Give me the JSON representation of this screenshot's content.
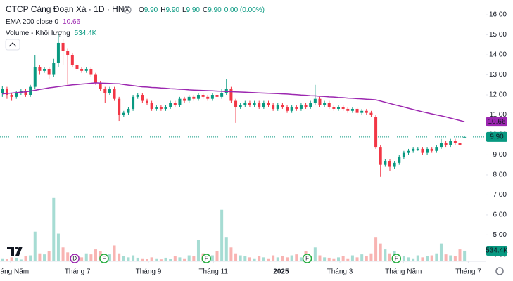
{
  "legend": {
    "title": "CTCP Cảng Đoạn Xá · 1D · HNX",
    "ohlc": [
      {
        "key": "O",
        "value": "9.90"
      },
      {
        "key": "H",
        "value": "9.90"
      },
      {
        "key": "L",
        "value": "9.90"
      },
      {
        "key": "C",
        "value": "9.90"
      }
    ],
    "change": "0.00 (0.00%)"
  },
  "chart_data": {
    "type": "candlestick",
    "up_color": "#089981",
    "down_color": "#f23645",
    "open": [
      12.1,
      12.3,
      12.0,
      11.9,
      12.1,
      12.2,
      12.0,
      12.4,
      13.4,
      13.2,
      13.3,
      13.0,
      13.6,
      14.6,
      14.2,
      14.0,
      13.5,
      13.3,
      13.2,
      13.3,
      13.0,
      12.6,
      12.3,
      12.1,
      12.3,
      11.8,
      11.0,
      11.1,
      11.3,
      11.9,
      12.0,
      11.7,
      11.6,
      11.3,
      11.4,
      11.3,
      11.4,
      11.6,
      11.5,
      11.8,
      11.7,
      11.9,
      11.8,
      12.0,
      11.9,
      11.8,
      12.0,
      11.9,
      12.1,
      12.3,
      11.7,
      11.4,
      11.5,
      11.6,
      11.5,
      11.6,
      11.4,
      11.6,
      11.5,
      11.3,
      11.5,
      11.4,
      11.2,
      11.4,
      11.3,
      11.5,
      11.4,
      11.6,
      11.8,
      11.5,
      11.6,
      11.4,
      11.3,
      11.4,
      11.3,
      11.2,
      11.3,
      11.1,
      11.2,
      11.1,
      10.9,
      9.4,
      8.5,
      8.7,
      8.4,
      8.6,
      8.9,
      9.1,
      9.2,
      9.3,
      9.3,
      9.1,
      9.3,
      9.2,
      9.4,
      9.6,
      9.5,
      9.7,
      9.6,
      9.9
    ],
    "high": [
      12.45,
      12.4,
      12.1,
      12.2,
      12.3,
      12.3,
      12.5,
      14.0,
      13.5,
      13.4,
      13.4,
      13.8,
      15.1,
      14.8,
      14.3,
      14.1,
      13.6,
      13.4,
      13.4,
      13.4,
      13.1,
      12.7,
      12.4,
      12.4,
      12.4,
      11.9,
      11.2,
      11.4,
      12.0,
      12.1,
      12.1,
      11.8,
      11.7,
      11.5,
      11.5,
      11.5,
      11.7,
      11.7,
      11.9,
      11.9,
      12.0,
      12.0,
      12.1,
      12.1,
      12.0,
      12.1,
      12.1,
      12.3,
      12.8,
      12.4,
      11.8,
      11.6,
      11.7,
      11.7,
      11.7,
      11.7,
      11.7,
      11.7,
      11.6,
      11.6,
      11.6,
      11.5,
      11.5,
      11.5,
      11.6,
      11.6,
      11.7,
      12.5,
      11.9,
      11.7,
      11.7,
      11.5,
      11.5,
      11.5,
      11.4,
      11.4,
      11.4,
      11.3,
      11.3,
      11.2,
      11.0,
      9.5,
      8.8,
      8.8,
      8.7,
      9.0,
      9.2,
      9.3,
      9.4,
      9.4,
      9.4,
      9.4,
      9.4,
      9.5,
      9.8,
      9.7,
      9.8,
      9.8,
      9.9,
      9.9
    ],
    "low": [
      11.9,
      11.8,
      11.7,
      11.8,
      12.0,
      11.9,
      11.9,
      12.3,
      13.0,
      13.1,
      12.8,
      12.9,
      13.4,
      13.5,
      12.5,
      13.4,
      13.2,
      13.1,
      13.1,
      12.9,
      12.5,
      12.2,
      11.6,
      12.0,
      11.7,
      10.7,
      10.9,
      11.0,
      11.2,
      11.8,
      11.6,
      11.5,
      11.2,
      11.2,
      11.2,
      11.2,
      11.3,
      11.4,
      11.4,
      11.6,
      11.6,
      11.7,
      11.7,
      11.8,
      11.7,
      11.7,
      11.8,
      11.8,
      12.0,
      11.6,
      10.6,
      11.3,
      11.4,
      11.4,
      11.4,
      11.3,
      11.3,
      11.4,
      11.2,
      11.2,
      11.3,
      11.1,
      11.1,
      11.2,
      11.2,
      11.3,
      11.3,
      11.5,
      11.4,
      11.4,
      11.3,
      11.2,
      11.2,
      11.2,
      11.1,
      11.1,
      11.0,
      11.0,
      11.0,
      10.9,
      9.3,
      7.9,
      8.4,
      8.2,
      8.3,
      8.5,
      8.8,
      9.0,
      9.1,
      9.2,
      9.0,
      9.0,
      9.1,
      9.1,
      9.3,
      9.4,
      9.4,
      9.5,
      8.8,
      9.9
    ],
    "close": [
      12.3,
      12.0,
      11.9,
      12.1,
      12.2,
      12.0,
      12.4,
      13.4,
      13.2,
      13.3,
      13.0,
      13.6,
      14.6,
      14.2,
      14.0,
      13.5,
      13.3,
      13.2,
      13.3,
      13.0,
      12.6,
      12.3,
      12.1,
      12.3,
      11.8,
      11.0,
      11.1,
      11.3,
      11.9,
      12.0,
      11.7,
      11.6,
      11.3,
      11.4,
      11.3,
      11.4,
      11.6,
      11.5,
      11.8,
      11.7,
      11.9,
      11.8,
      12.0,
      11.9,
      11.8,
      12.0,
      11.9,
      12.1,
      12.3,
      11.7,
      11.4,
      11.5,
      11.6,
      11.5,
      11.6,
      11.4,
      11.6,
      11.5,
      11.3,
      11.5,
      11.4,
      11.2,
      11.4,
      11.3,
      11.5,
      11.4,
      11.6,
      11.8,
      11.5,
      11.6,
      11.4,
      11.3,
      11.4,
      11.3,
      11.2,
      11.3,
      11.1,
      11.2,
      11.1,
      11.0,
      9.4,
      8.5,
      8.7,
      8.4,
      8.6,
      8.9,
      9.1,
      9.2,
      9.3,
      9.3,
      9.1,
      9.3,
      9.2,
      9.4,
      9.6,
      9.5,
      9.7,
      9.6,
      9.5,
      9.9
    ],
    "ema": {
      "name": "EMA 200 close 0",
      "color": "#9c27b0",
      "values": [
        12.05,
        12.07,
        12.09,
        12.11,
        12.13,
        12.15,
        12.19,
        12.23,
        12.27,
        12.31,
        12.35,
        12.38,
        12.41,
        12.44,
        12.47,
        12.5,
        12.52,
        12.54,
        12.56,
        12.58,
        12.6,
        12.59,
        12.58,
        12.57,
        12.56,
        12.55,
        12.52,
        12.49,
        12.46,
        12.43,
        12.4,
        12.39,
        12.37,
        12.36,
        12.34,
        12.33,
        12.31,
        12.3,
        12.28,
        12.27,
        12.25,
        12.24,
        12.23,
        12.22,
        12.21,
        12.2,
        12.19,
        12.18,
        12.17,
        12.16,
        12.15,
        12.14,
        12.13,
        12.12,
        12.11,
        12.1,
        12.09,
        12.08,
        12.07,
        12.06,
        12.05,
        12.04,
        12.02,
        12.01,
        11.99,
        11.98,
        11.96,
        11.95,
        11.93,
        11.92,
        11.9,
        11.89,
        11.87,
        11.86,
        11.84,
        11.83,
        11.81,
        11.8,
        11.78,
        11.77,
        11.75,
        11.69,
        11.63,
        11.57,
        11.51,
        11.45,
        11.39,
        11.33,
        11.27,
        11.21,
        11.15,
        11.1,
        11.05,
        11.0,
        10.95,
        10.9,
        10.84,
        10.78,
        10.72,
        10.66
      ],
      "last_label": {
        "value": 10.66,
        "label": "10.66"
      }
    },
    "volume": {
      "name": "Volume - Khối lượng",
      "up_color": "#a6dcd3",
      "down_color": "#f8b4b2",
      "ylim": [
        0,
        13200000
      ],
      "values": [
        150000,
        120000,
        200000,
        180000,
        90000,
        260000,
        300000,
        1500000,
        400000,
        350000,
        500000,
        3200000,
        1400000,
        700000,
        450000,
        300000,
        250000,
        200000,
        400000,
        350000,
        600000,
        500000,
        300000,
        350000,
        800000,
        400000,
        250000,
        200000,
        300000,
        180000,
        150000,
        120000,
        200000,
        150000,
        100000,
        180000,
        120000,
        250000,
        200000,
        150000,
        300000,
        250000,
        1100000,
        400000,
        200000,
        300000,
        500000,
        2600000,
        1200000,
        700000,
        400000,
        300000,
        250000,
        200000,
        150000,
        250000,
        200000,
        150000,
        300000,
        200000,
        250000,
        200000,
        300000,
        350000,
        200000,
        500000,
        250000,
        700000,
        300000,
        200000,
        180000,
        150000,
        200000,
        250000,
        150000,
        300000,
        200000,
        350000,
        250000,
        400000,
        1200000,
        900000,
        600000,
        400000,
        500000,
        300000,
        250000,
        200000,
        150000,
        300000,
        200000,
        250000,
        300000,
        400000,
        900000,
        350000,
        300000,
        250000,
        600000,
        534400
      ],
      "last_label": {
        "value": 534400,
        "label": "534.4K"
      }
    },
    "last_price": {
      "value": 9.9,
      "label": "9.90"
    },
    "xlim": [
      -0.5,
      103.5
    ],
    "xticks": [
      {
        "value": 1.76,
        "label": "Tháng Năm"
      },
      {
        "value": 16.1,
        "label": "Tháng 7"
      },
      {
        "value": 31.3,
        "label": "Tháng 9"
      },
      {
        "value": 45.2,
        "label": "Tháng 11"
      },
      {
        "value": 59.7,
        "label": "2025"
      },
      {
        "value": 72.3,
        "label": "Tháng 3"
      },
      {
        "value": 85.9,
        "label": "Tháng Năm"
      },
      {
        "value": 99.8,
        "label": "Tháng 7"
      }
    ],
    "ylim": [
      3.68,
      16.74
    ],
    "yticks": [
      {
        "value": 4,
        "label": "4.00"
      },
      {
        "value": 5,
        "label": "5.00"
      },
      {
        "value": 6,
        "label": "6.00"
      },
      {
        "value": 7,
        "label": "7.00"
      },
      {
        "value": 8,
        "label": "8.00"
      },
      {
        "value": 9,
        "label": "9.00"
      },
      {
        "value": 10,
        "label": "10.00"
      },
      {
        "value": 11,
        "label": "11.00"
      },
      {
        "value": 12,
        "label": "12.00"
      },
      {
        "value": 13,
        "label": "13.00"
      },
      {
        "value": 14,
        "label": "14.00"
      },
      {
        "value": 15,
        "label": "15.00"
      },
      {
        "value": 16,
        "label": "16.00"
      }
    ],
    "events": [
      {
        "x": 15.5,
        "label": "D",
        "color": "#9c27b0"
      },
      {
        "x": 21.8,
        "label": "F",
        "color": "#22ab3c"
      },
      {
        "x": 43.7,
        "label": "F",
        "color": "#22ab3c"
      },
      {
        "x": 65.3,
        "label": "F",
        "color": "#22ab3c"
      },
      {
        "x": 84.4,
        "label": "F",
        "color": "#22ab3c"
      }
    ]
  }
}
